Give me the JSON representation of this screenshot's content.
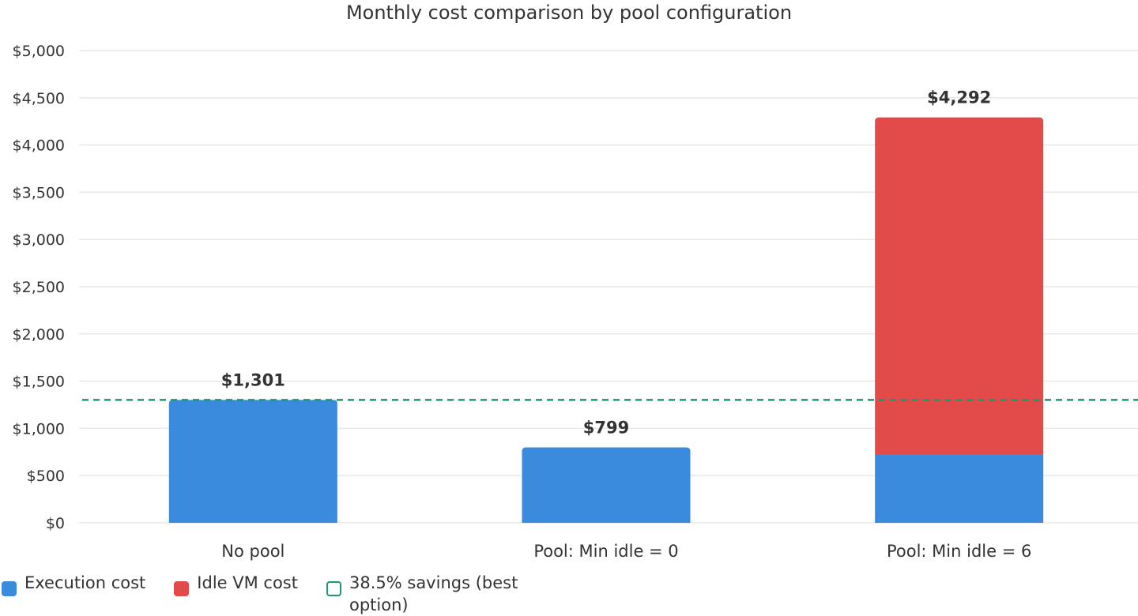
{
  "chart_data": {
    "type": "bar",
    "stacked": true,
    "title": "Monthly cost comparison by pool configuration",
    "xlabel": "",
    "ylabel": "",
    "ylim": [
      0,
      5000
    ],
    "yticks": [
      0,
      500,
      1000,
      1500,
      2000,
      2500,
      3000,
      3500,
      4000,
      4500,
      5000
    ],
    "ytick_labels": [
      "$0",
      "$500",
      "$1,000",
      "$1,500",
      "$2,000",
      "$2,500",
      "$3,000",
      "$3,500",
      "$4,000",
      "$4,500",
      "$5,000"
    ],
    "grid": true,
    "categories": [
      "No pool",
      "Pool: Min idle = 0",
      "Pool: Min idle = 6"
    ],
    "series": [
      {
        "name": "Execution cost",
        "values": [
          1301,
          799,
          727
        ],
        "color": "#3a8bdd"
      },
      {
        "name": "Idle VM cost",
        "values": [
          0,
          0,
          3565
        ],
        "color": "#e24b4a"
      }
    ],
    "totals": [
      1301,
      799,
      4292
    ],
    "total_labels": [
      "$1,301",
      "$799",
      "$4,292"
    ],
    "reference_line": {
      "name": "38.5% savings (best option)",
      "value": 1301,
      "color": "#1a9a6c",
      "style": "dashed"
    },
    "legend_position": "bottom-left"
  }
}
